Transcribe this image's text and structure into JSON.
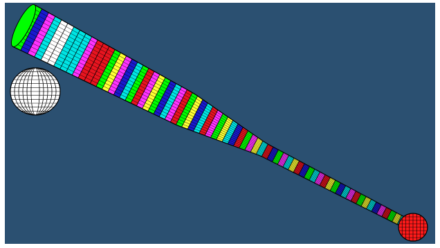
{
  "scene": {
    "background_color": "#2b5071",
    "mesh_line_color": "#000000",
    "bat": {
      "band_colors": [
        "#00ff00",
        "#1a1acf",
        "#ffff33",
        "#ff33ff",
        "#00e5e5",
        "#e8141f",
        "#ffffff"
      ],
      "knob_color": "#ff1a1a"
    },
    "ball": {
      "fill_color": "#ffffff"
    }
  }
}
